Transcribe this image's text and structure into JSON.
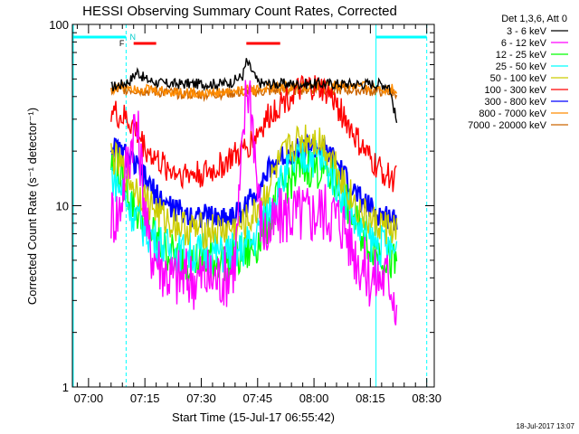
{
  "chart_data": {
    "type": "line",
    "title": "HESSI Observing Summary Count Rates, Corrected",
    "xlabel": "Start Time (15-Jul-17 06:55:42)",
    "ylabel": "Corrected Count Rate (s⁻¹ detector⁻¹)",
    "yscale": "log",
    "ylim": [
      1,
      100
    ],
    "xlim_minutes_after_0700": [
      -4.3,
      92
    ],
    "x_tick_labels": [
      "07:00",
      "07:15",
      "07:30",
      "07:45",
      "08:00",
      "08:15",
      "08:30"
    ],
    "x_tick_minutes": [
      0,
      15,
      30,
      45,
      60,
      75,
      90
    ],
    "y_tick_labels": [
      "1",
      "10",
      "100"
    ],
    "y_tick_values": [
      1,
      10,
      100
    ],
    "legend_title": "Det 1,3,6, Att 0",
    "legend_placement": "right, outside plot",
    "timestamp": "18-Jul-2017 13:07",
    "annotations": {
      "flag_F": "F",
      "flag_N": "N",
      "night_bars_minutes": [
        [
          -4.3,
          10
        ],
        [
          76.5,
          90
        ]
      ],
      "flare_bars_minutes": [
        [
          12,
          18
        ],
        [
          42,
          51
        ]
      ],
      "dashed_lines_minutes": [
        10,
        90
      ],
      "solid_lines_minutes": [
        76.5
      ]
    },
    "series": [
      {
        "name": "3 - 6 keV",
        "color": "#000000",
        "x": [
          6,
          9,
          11,
          12,
          13,
          15,
          18,
          20,
          25,
          30,
          35,
          38,
          41,
          42,
          43,
          45,
          47,
          50,
          55,
          60,
          65,
          70,
          75,
          78,
          80,
          82
        ],
        "y": [
          45,
          47,
          49,
          52,
          55,
          50,
          48,
          47,
          47,
          47,
          47,
          48,
          52,
          62,
          58,
          48,
          47,
          47,
          47,
          47,
          47,
          47,
          47,
          47,
          46,
          29
        ]
      },
      {
        "name": "6 - 12 keV",
        "color": "#ff00ff",
        "x": [
          6,
          8,
          10,
          11,
          12,
          13,
          14,
          15,
          16,
          18,
          20,
          22,
          25,
          28,
          30,
          32,
          35,
          37,
          39,
          41,
          42,
          43,
          44,
          45,
          46,
          47,
          48,
          50,
          52,
          55,
          58,
          60,
          62,
          65,
          68,
          70,
          72,
          75,
          77,
          80,
          81,
          82
        ],
        "y": [
          9,
          9,
          16,
          20,
          28,
          25,
          17,
          10,
          6,
          5.2,
          4.5,
          4,
          4,
          4,
          4,
          4,
          4,
          4.2,
          5,
          20,
          45,
          42,
          25,
          12,
          8,
          7,
          7,
          8,
          9,
          9,
          9,
          9,
          9.5,
          9,
          8,
          6,
          5,
          4,
          4,
          4,
          3.5,
          2.8
        ]
      },
      {
        "name": "12 - 25 keV",
        "color": "#00ff00",
        "x": [
          6,
          9,
          12,
          15,
          18,
          20,
          23,
          26,
          30,
          35,
          40,
          44,
          47,
          50,
          53,
          56,
          59,
          62,
          65,
          68,
          70,
          72,
          74,
          76,
          78,
          80,
          82
        ],
        "y": [
          17,
          14,
          10,
          8,
          6.5,
          5.8,
          5.3,
          5,
          5,
          5,
          5.1,
          5.8,
          7.5,
          10.5,
          13.5,
          15.5,
          16.5,
          16,
          14,
          11,
          9,
          7.5,
          6.5,
          6,
          5.5,
          5,
          4.6
        ]
      },
      {
        "name": "25 - 50 keV",
        "color": "#00ffff",
        "x": [
          6,
          9,
          12,
          15,
          18,
          20,
          23,
          26,
          30,
          35,
          40,
          44,
          47,
          50,
          53,
          56,
          59,
          62,
          65,
          68,
          70,
          72,
          74,
          76,
          78,
          80,
          82
        ],
        "y": [
          15,
          12,
          9,
          7.5,
          6.5,
          6,
          5.6,
          5.5,
          5.5,
          5.5,
          5.6,
          6.5,
          8.5,
          12,
          15.5,
          18,
          19,
          18,
          15,
          11,
          9,
          7.5,
          6.8,
          6.2,
          6,
          5.8,
          5.6
        ]
      },
      {
        "name": "50 - 100 keV",
        "color": "#cccc00",
        "x": [
          6,
          9,
          12,
          15,
          18,
          20,
          23,
          26,
          30,
          35,
          40,
          44,
          47,
          50,
          53,
          56,
          59,
          62,
          65,
          68,
          70,
          72,
          74,
          76,
          78,
          80,
          82
        ],
        "y": [
          19,
          16,
          13,
          11,
          9.5,
          8.5,
          8,
          7.5,
          7.3,
          7.3,
          7.5,
          8.8,
          11.5,
          16,
          20,
          23,
          24,
          22.5,
          18.5,
          13.5,
          11,
          9.5,
          8.5,
          8,
          7.8,
          7.5,
          7.3
        ]
      },
      {
        "name": "100 - 300 keV",
        "color": "#ff0000",
        "x": [
          6,
          8,
          10,
          12,
          15,
          18,
          20,
          23,
          26,
          30,
          33,
          36,
          38,
          40,
          42,
          44,
          46,
          48,
          50,
          53,
          56,
          59,
          62,
          64,
          66,
          68,
          70,
          72,
          74,
          76,
          78,
          80,
          82
        ],
        "y": [
          34,
          31,
          30,
          27,
          21,
          18,
          16.5,
          15.5,
          15,
          15,
          15.5,
          17,
          18.5,
          19,
          21,
          23.5,
          27,
          31,
          35,
          40,
          43,
          45,
          44,
          41,
          36,
          31,
          26,
          22,
          19,
          17,
          15.5,
          14.5,
          14
        ]
      },
      {
        "name": "300 - 800 keV",
        "color": "#0000ff",
        "x": [
          6,
          8,
          10,
          12,
          14,
          16,
          18,
          20,
          23,
          26,
          30,
          35,
          38,
          40,
          42,
          44,
          46,
          48,
          50,
          53,
          56,
          59,
          62,
          64,
          66,
          68,
          70,
          72,
          74,
          76,
          78,
          80,
          82
        ],
        "y": [
          21,
          20,
          19,
          17,
          15,
          13,
          11.5,
          10.5,
          9.5,
          9,
          8.8,
          8.6,
          8.8,
          9.2,
          10,
          11.5,
          13.5,
          15.5,
          17.5,
          19.5,
          20.5,
          21,
          20.5,
          19,
          17,
          14.5,
          12.5,
          11,
          10,
          9.2,
          8.8,
          8.6,
          8.5
        ]
      },
      {
        "name": "800 - 7000 keV",
        "color": "#ff8c00",
        "x": [
          6,
          8,
          10,
          12,
          15,
          18,
          20,
          23,
          26,
          30,
          35,
          40,
          45,
          50,
          55,
          60,
          65,
          70,
          75,
          78,
          80,
          82
        ],
        "y": [
          44,
          45,
          46,
          45,
          44,
          43,
          43,
          42.5,
          42,
          42,
          42,
          43,
          44,
          45,
          45.5,
          46,
          46,
          45.5,
          45,
          44.5,
          44,
          43.5
        ]
      },
      {
        "name": "7000 - 20000 keV",
        "color": "#cc6600",
        "x": [
          6,
          10,
          15,
          20,
          30,
          40,
          50,
          60,
          70,
          75,
          80,
          82
        ],
        "y": [
          43,
          44,
          43,
          42,
          41,
          42,
          43,
          44,
          43.5,
          43,
          42.5,
          42
        ]
      }
    ]
  }
}
